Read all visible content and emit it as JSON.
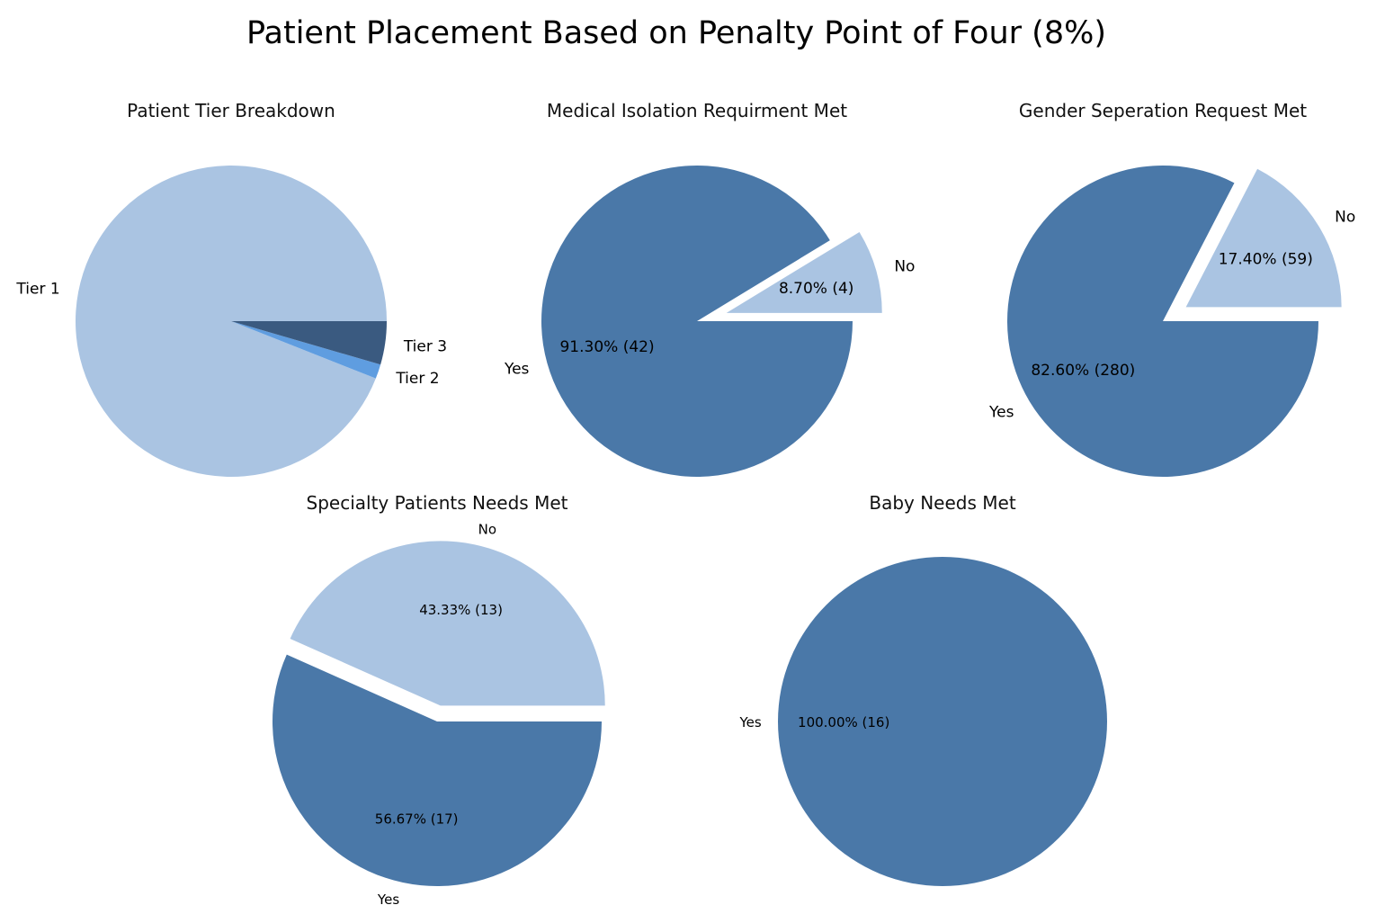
{
  "figure": {
    "title": "Patient Placement Based on Penalty Point of Four (8%)"
  },
  "colors": {
    "light": "#aac4e2",
    "medium": "#4a78a8",
    "dark": "#3a5a80",
    "bright": "#5f9de0"
  },
  "chart_data": [
    {
      "type": "pie",
      "title": "Patient Tier Breakdown",
      "labels": [
        "Tier 1",
        "Tier 2",
        "Tier 3"
      ],
      "values": [
        94,
        1.5,
        4.5
      ],
      "pct_labels": [
        "",
        "",
        ""
      ],
      "colors": [
        "#aac4e2",
        "#5f9de0",
        "#3a5a80"
      ],
      "explode": [
        0,
        0,
        0
      ]
    },
    {
      "type": "pie",
      "title": "Medical Isolation Requirment Met",
      "labels": [
        "No",
        "Yes"
      ],
      "values": [
        4,
        42
      ],
      "pct_labels": [
        "8.70%  (4)",
        "91.30%  (42)"
      ],
      "colors": [
        "#aac4e2",
        "#4a78a8"
      ],
      "explode": [
        1,
        0
      ]
    },
    {
      "type": "pie",
      "title": "Gender Seperation Request Met",
      "labels": [
        "No",
        "Yes"
      ],
      "values": [
        59,
        280
      ],
      "pct_labels": [
        "17.40%  (59)",
        "82.60%  (280)"
      ],
      "colors": [
        "#aac4e2",
        "#4a78a8"
      ],
      "explode": [
        1,
        0
      ]
    },
    {
      "type": "pie",
      "title": "Specialty Patients Needs Met",
      "labels": [
        "No",
        "Yes"
      ],
      "values": [
        13,
        17
      ],
      "pct_labels": [
        "43.33%  (13)",
        "56.67%  (17)"
      ],
      "colors": [
        "#aac4e2",
        "#4a78a8"
      ],
      "explode": [
        1,
        0
      ]
    },
    {
      "type": "pie",
      "title": "Baby Needs Met",
      "labels": [
        "Yes"
      ],
      "values": [
        16
      ],
      "pct_labels": [
        "100.00%  (16)"
      ],
      "colors": [
        "#4a78a8"
      ],
      "explode": [
        0
      ]
    }
  ]
}
